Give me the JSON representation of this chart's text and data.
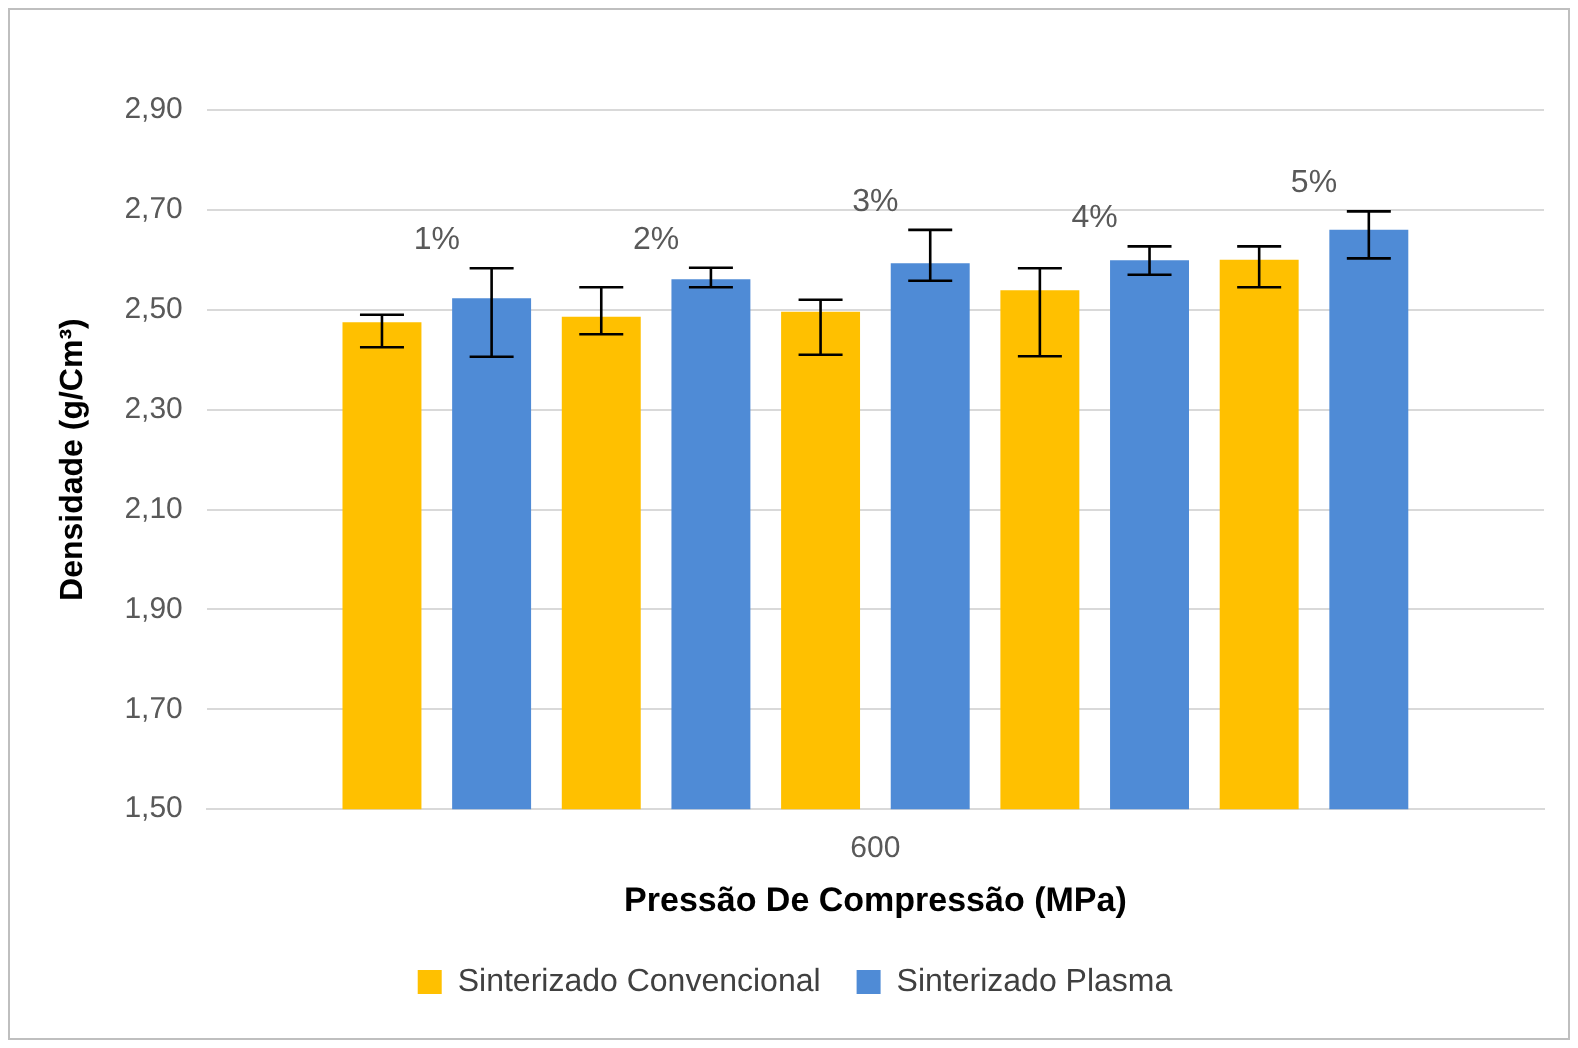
{
  "chart_data": {
    "type": "bar",
    "xlabel": "Pressão De Compressão (MPa)",
    "ylabel": "Densidade (g/Cm³)",
    "categories": [
      "600"
    ],
    "series": [
      {
        "name": "Sinterizado Convencional",
        "color": "#ffc000",
        "values": [
          2.475
        ],
        "errors": [
          [
            2.425,
            2.49
          ]
        ]
      },
      {
        "name": "Sinterizado Plasma",
        "color": "#4f8bd6",
        "values": [
          2.523
        ],
        "errors": [
          [
            2.406,
            2.583
          ]
        ]
      },
      {
        "color": "#ffc000",
        "values": [
          2.486
        ],
        "errors": [
          [
            2.451,
            2.545
          ]
        ]
      },
      {
        "color": "#4f8bd6",
        "values": [
          2.561
        ],
        "errors": [
          [
            2.545,
            2.584
          ]
        ]
      },
      {
        "color": "#ffc000",
        "values": [
          2.496
        ],
        "errors": [
          [
            2.41,
            2.52
          ]
        ]
      },
      {
        "color": "#4f8bd6",
        "values": [
          2.593
        ],
        "errors": [
          [
            2.558,
            2.66
          ]
        ]
      },
      {
        "color": "#ffc000",
        "values": [
          2.539
        ],
        "errors": [
          [
            2.407,
            2.583
          ]
        ]
      },
      {
        "color": "#4f8bd6",
        "values": [
          2.599
        ],
        "errors": [
          [
            2.57,
            2.627
          ]
        ]
      },
      {
        "color": "#ffc000",
        "values": [
          2.6
        ],
        "errors": [
          [
            2.545,
            2.627
          ]
        ]
      },
      {
        "color": "#4f8bd6",
        "values": [
          2.66
        ],
        "errors": [
          [
            2.603,
            2.697
          ]
        ]
      }
    ],
    "annotations": [
      "1%",
      "2%",
      "3%",
      "4%",
      "5%"
    ],
    "ylim": [
      1.5,
      2.9
    ],
    "yticks": [
      {
        "value": 1.5,
        "label": "1,50"
      },
      {
        "value": 1.7,
        "label": "1,70"
      },
      {
        "value": 1.9,
        "label": "1,90"
      },
      {
        "value": 2.1,
        "label": "2,10"
      },
      {
        "value": 2.3,
        "label": "2,30"
      },
      {
        "value": 2.5,
        "label": "2,50"
      },
      {
        "value": 2.7,
        "label": "2,70"
      },
      {
        "value": 2.9,
        "label": "2,90"
      }
    ],
    "grid": "y",
    "legend": "bottom"
  }
}
